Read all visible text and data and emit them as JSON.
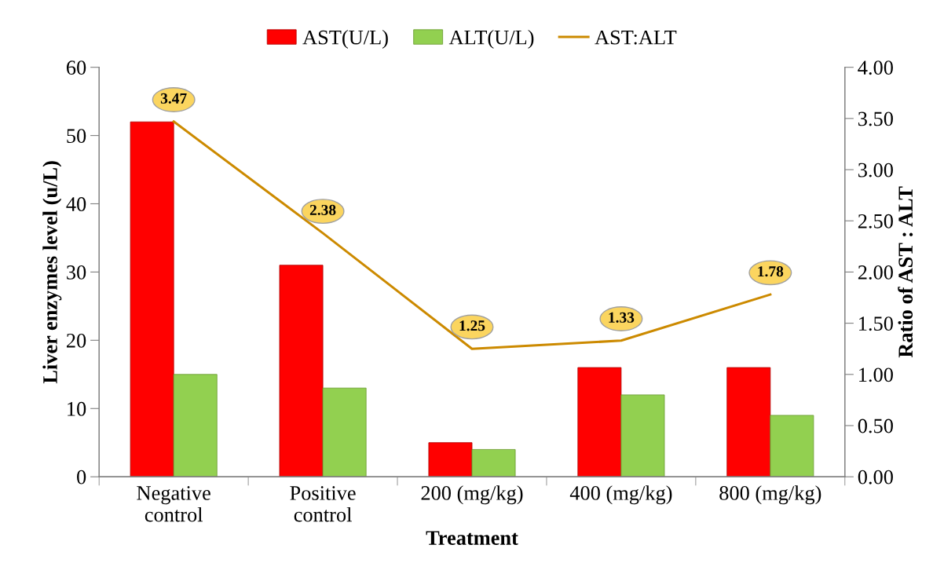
{
  "chart_data": {
    "type": "bar",
    "xlabel": "Treatment",
    "ylabel": "Liver enzymes level (u/L)",
    "y2label": "Ratio of AST : ALT",
    "categories": [
      "Negative\ncontrol",
      "Positive\ncontrol",
      "200 (mg/kg)",
      "400 (mg/kg)",
      "800 (mg/kg)"
    ],
    "series": [
      {
        "name": "AST(U/L)",
        "color": "#ff0000",
        "values": [
          52,
          31,
          5,
          16,
          16
        ]
      },
      {
        "name": "ALT(U/L)",
        "color": "#92d050",
        "values": [
          15,
          13,
          4,
          12,
          9
        ]
      },
      {
        "name": "AST:ALT",
        "type": "line",
        "axis": "y2",
        "color": "#cc8a00",
        "values": [
          3.47,
          2.38,
          1.25,
          1.33,
          1.78
        ],
        "value_labels": [
          "3.47",
          "2.38",
          "1.25",
          "1.33",
          "1.78"
        ]
      }
    ],
    "ylim": [
      0,
      60
    ],
    "yticks": [
      0,
      10,
      20,
      30,
      40,
      50,
      60
    ],
    "y2lim": [
      0,
      4
    ],
    "y2ticks": [
      {
        "value": 0,
        "label": "0.00"
      },
      {
        "value": 0.5,
        "label": "0.50"
      },
      {
        "value": 1,
        "label": "1.00"
      },
      {
        "value": 1.5,
        "label": "1.50"
      },
      {
        "value": 2,
        "label": "2.00"
      },
      {
        "value": 2.5,
        "label": "2.50"
      },
      {
        "value": 3,
        "label": "3.00"
      },
      {
        "value": 3.5,
        "label": "3.50"
      },
      {
        "value": 4,
        "label": "4.00"
      }
    ],
    "grid": false,
    "legend": "top"
  }
}
